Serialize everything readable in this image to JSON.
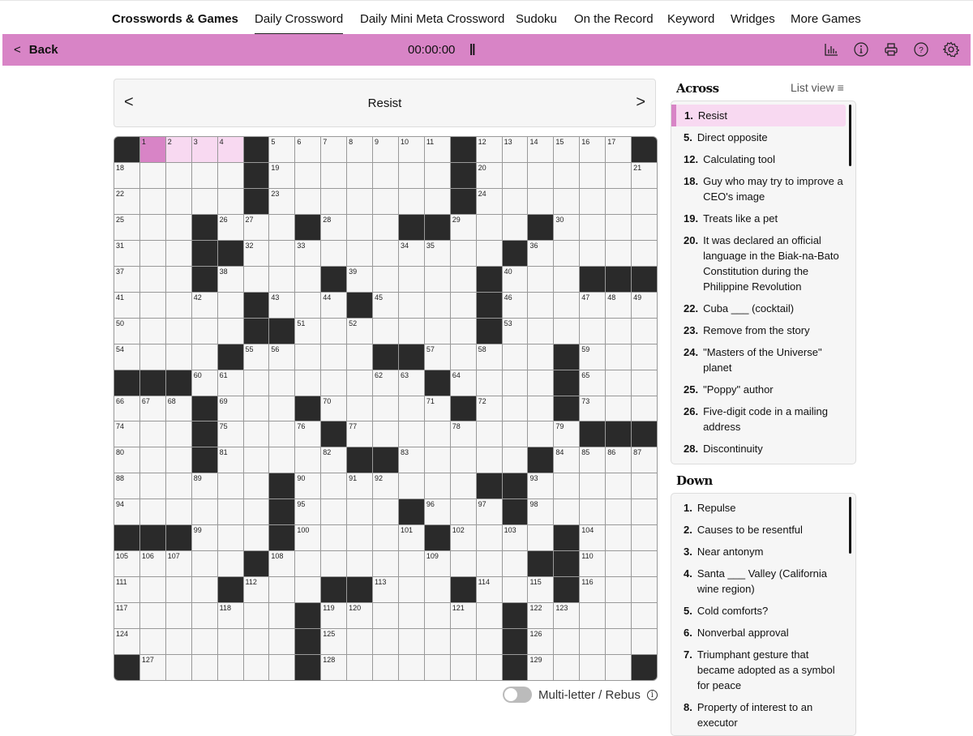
{
  "nav": {
    "brand": "Crosswords & Games",
    "items": [
      "Daily Crossword",
      "Daily Mini Meta Crossword",
      "Sudoku",
      "On the Record",
      "Keyword",
      "Wridges",
      "More Games"
    ],
    "active": "Daily Crossword"
  },
  "toolbar": {
    "back": "Back",
    "timer": "00:00:00",
    "pause": "||",
    "icons": [
      "stats-icon",
      "info-icon",
      "print-icon",
      "help-icon",
      "settings-icon"
    ],
    "color": "#d884c6"
  },
  "current_clue": {
    "text": "Resist",
    "prev": "<",
    "next": ">"
  },
  "grid": {
    "rows": [
      "#....#.......#......#",
      ".....#.......#.......",
      ".....#.......#.......",
      "...#...#...##...#....",
      "...##..........#.....",
      "...#....#.....#...###",
      ".....#...#....#......",
      ".....##.......#......",
      "....#.....##.....#...",
      "###.........#....#...",
      "...#...#.....#...#...",
      "...#....#.........###",
      "...#.....##.....#....",
      "......#.......##.....",
      "......#....#...#.....",
      "###...#.....#....#...",
      ".....#..........##...",
      "....#...##...#...#...",
      ".......#.......#.....",
      ".......#.......#.....",
      "#......#.......#....#"
    ],
    "selected": [
      0,
      1
    ],
    "highlighted": [
      [
        0,
        2
      ],
      [
        0,
        3
      ],
      [
        0,
        4
      ]
    ],
    "highlight_color": "#f8d9f1"
  },
  "rebus": {
    "label": "Multi-letter / Rebus",
    "on": false
  },
  "across": {
    "title": "Across",
    "list_view": "List view",
    "clues": [
      {
        "n": "1.",
        "t": "Resist",
        "active": true
      },
      {
        "n": "5.",
        "t": "Direct opposite"
      },
      {
        "n": "12.",
        "t": "Calculating tool"
      },
      {
        "n": "18.",
        "t": "Guy who may try to improve a CEO's image"
      },
      {
        "n": "19.",
        "t": "Treats like a pet"
      },
      {
        "n": "20.",
        "t": "It was declared an official language in the Biak-na-Bato Constitution during the Philippine Revolution"
      },
      {
        "n": "22.",
        "t": "Cuba ___ (cocktail)"
      },
      {
        "n": "23.",
        "t": "Remove from the story"
      },
      {
        "n": "24.",
        "t": "\"Masters of the Universe\" planet"
      },
      {
        "n": "25.",
        "t": "\"Poppy\" author"
      },
      {
        "n": "26.",
        "t": "Five-digit code in a mailing address"
      },
      {
        "n": "28.",
        "t": "Discontinuity"
      }
    ]
  },
  "down": {
    "title": "Down",
    "clues": [
      {
        "n": "1.",
        "t": "Repulse"
      },
      {
        "n": "2.",
        "t": "Causes to be resentful"
      },
      {
        "n": "3.",
        "t": "Near antonym"
      },
      {
        "n": "4.",
        "t": "Santa ___ Valley (California wine region)"
      },
      {
        "n": "5.",
        "t": "Cold comforts?"
      },
      {
        "n": "6.",
        "t": "Nonverbal approval"
      },
      {
        "n": "7.",
        "t": "Triumphant gesture that became adopted as a symbol for peace"
      },
      {
        "n": "8.",
        "t": "Property of interest to an executor"
      }
    ]
  }
}
